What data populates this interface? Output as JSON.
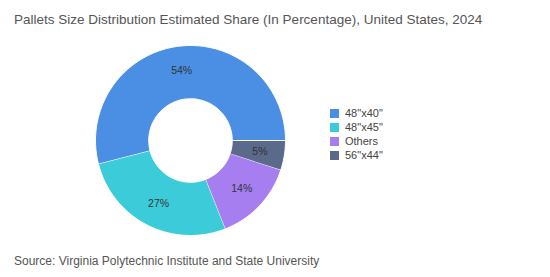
{
  "chart_data": {
    "type": "pie",
    "title": "Pallets Size Distribution Estimated Share (In Percentage), United States, 2024",
    "categories": [
      "48\"x40\"",
      "48\"x45\"",
      "Others",
      "56\"x44\""
    ],
    "values": [
      54,
      27,
      14,
      5
    ],
    "value_labels": [
      "54%",
      "27%",
      "14%",
      "5%"
    ],
    "colors": [
      "#4a8fe3",
      "#3ccbd8",
      "#a77ef0",
      "#5b6a8a"
    ],
    "data_labels": true,
    "legend": "right",
    "source": "Source: Virginia Polytechnic Institute and State University"
  }
}
